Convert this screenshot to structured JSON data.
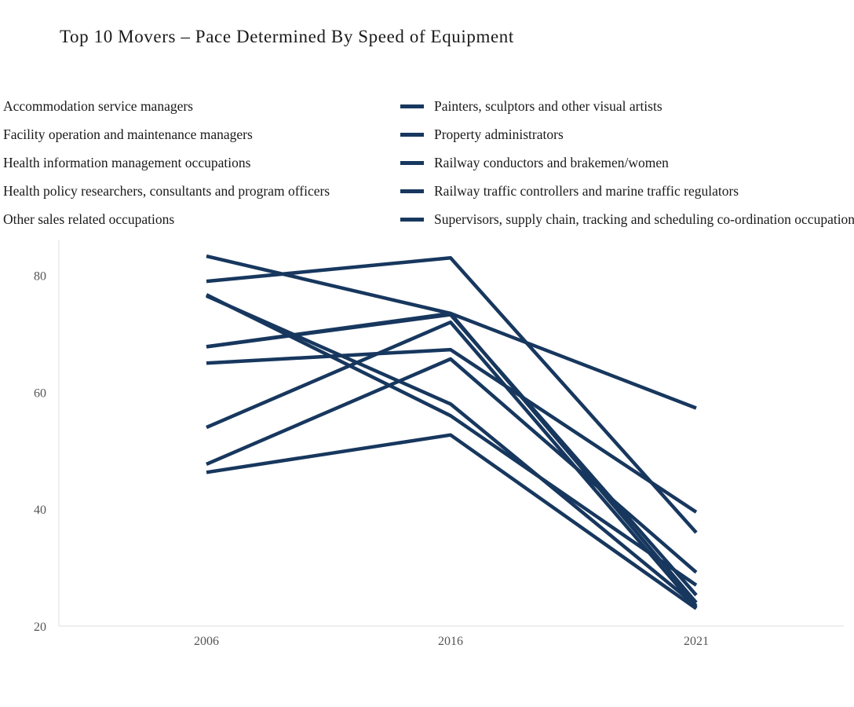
{
  "chart_data": {
    "type": "line",
    "title": "Top 10 Movers – Pace Determined By Speed of Equipment",
    "xlabel": "",
    "ylabel": "",
    "x": [
      "2006",
      "2016",
      "2021"
    ],
    "ylim": [
      20,
      86
    ],
    "yticks": [
      20,
      40,
      60,
      80
    ],
    "grid": false,
    "legend_position": "top",
    "line_color": "#17375e",
    "series": [
      {
        "name": "Accommodation service managers",
        "values": [
          76.5,
          58.0,
          23.5
        ]
      },
      {
        "name": "Facility operation and maintenance managers",
        "values": [
          65.0,
          67.3,
          39.5
        ]
      },
      {
        "name": "Health information management occupations",
        "values": [
          46.3,
          52.7,
          23.0
        ]
      },
      {
        "name": "Health policy researchers, consultants and program officers",
        "values": [
          79.0,
          83.0,
          36.0
        ]
      },
      {
        "name": "Other sales related occupations",
        "values": [
          47.7,
          65.7,
          29.2
        ]
      },
      {
        "name": "Painters, sculptors and other visual artists",
        "values": [
          83.3,
          73.5,
          57.3
        ]
      },
      {
        "name": "Property administrators",
        "values": [
          54.0,
          72.0,
          23.2
        ]
      },
      {
        "name": "Railway conductors and brakemen/women",
        "values": [
          67.8,
          73.3,
          25.3
        ]
      },
      {
        "name": "Railway traffic controllers and marine traffic regulators",
        "values": [
          76.7,
          56.0,
          27.0
        ]
      },
      {
        "name": "Supervisors, supply chain, tracking and scheduling co-ordination occupations",
        "values": [
          67.8,
          73.5,
          24.0
        ]
      }
    ]
  }
}
